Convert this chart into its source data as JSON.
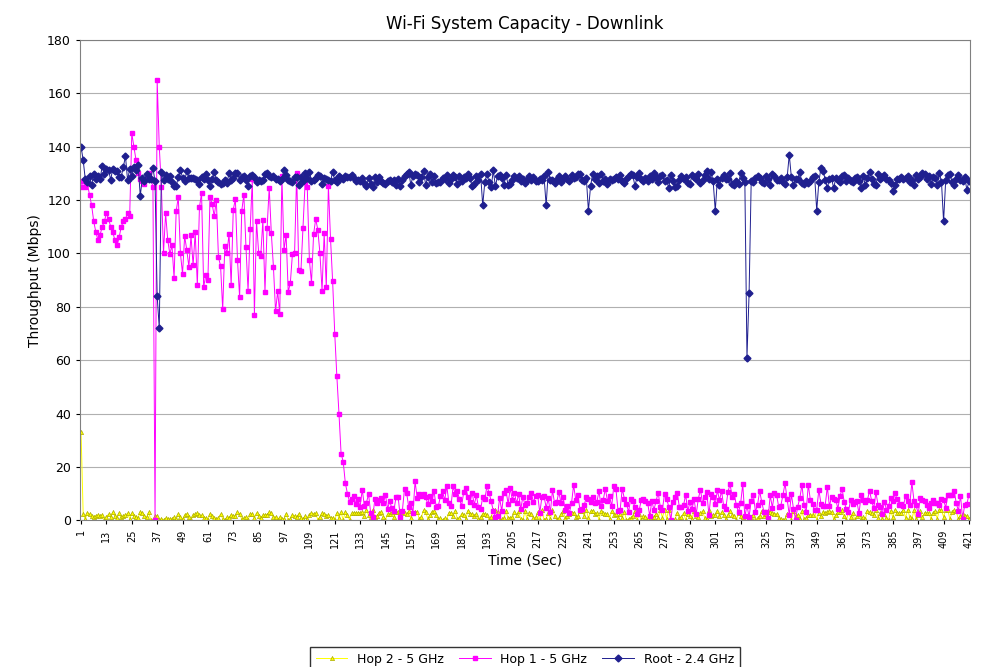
{
  "title": "Wi-Fi System Capacity - Downlink",
  "xlabel": "Time (Sec)",
  "ylabel": "Throughput (Mbps)",
  "ylim": [
    0,
    180
  ],
  "xlim": [
    1,
    421
  ],
  "yticks": [
    0,
    20,
    40,
    60,
    80,
    100,
    120,
    140,
    160,
    180
  ],
  "xticks": [
    1,
    13,
    25,
    37,
    49,
    61,
    73,
    85,
    97,
    109,
    121,
    133,
    145,
    157,
    169,
    181,
    193,
    205,
    217,
    229,
    241,
    253,
    265,
    277,
    289,
    301,
    313,
    325,
    337,
    349,
    361,
    373,
    385,
    397,
    409,
    421
  ],
  "colors": {
    "root": "#1F1F8F",
    "hop1": "#FF00FF",
    "hop2": "#FFFF00"
  },
  "legend_labels": [
    "Root - 2.4 GHz",
    "Hop 1 - 5 GHz",
    "Hop 2 - 5 GHz"
  ],
  "background_color": "#FFFFFF",
  "grid_color": "#B0B0B0"
}
